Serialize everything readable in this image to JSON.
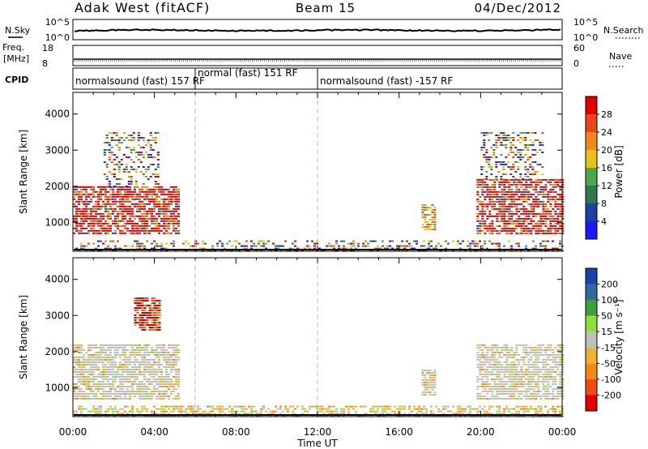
{
  "header": {
    "title": "Adak West (fitACF)",
    "beam": "Beam 15",
    "date": "04/Dec/2012"
  },
  "noise_panel": {
    "left_label": "N.Sky",
    "right_label": "N.Search",
    "left_ticks": [
      "10^5",
      "10^0"
    ],
    "right_ticks": [
      "10^5",
      "10^0"
    ]
  },
  "freq_panel": {
    "left_label_line1": "Freq.",
    "left_label_line2": "[MHz]",
    "right_label": "Nave",
    "left_ticks": [
      "18",
      "8"
    ],
    "right_ticks": [
      "60",
      "0"
    ]
  },
  "cpid": {
    "label": "CPID",
    "segments": [
      {
        "text": "normalsound (fast) 157 RF",
        "start_hour": 0,
        "end_hour": 6
      },
      {
        "text": "normal (fast) 151 RF",
        "start_hour": 6,
        "end_hour": 12
      },
      {
        "text": "normalsound (fast) -157 RF",
        "start_hour": 12,
        "end_hour": 24
      }
    ]
  },
  "x_axis": {
    "label": "Time UT",
    "ticks": [
      "00:00",
      "04:00",
      "08:00",
      "12:00",
      "16:00",
      "20:00",
      "00:00"
    ]
  },
  "colors": {
    "power_scale": [
      "#1a1aff",
      "#1d3fa8",
      "#2e7a4e",
      "#4fa64b",
      "#e8c21a",
      "#f08a16",
      "#e8461a",
      "#e00000"
    ],
    "velocity_scale": [
      "#e00000",
      "#f04a16",
      "#f08a16",
      "#f0b030",
      "#bebebe",
      "#8ede3c",
      "#3aa03a",
      "#2e6aa0",
      "#1d3fa8"
    ],
    "ground_scatter": "#bebebe"
  },
  "chart_data": [
    {
      "type": "heatmap",
      "name": "power",
      "ylabel": "Slant Range [km]",
      "yticks": [
        "1000",
        "2000",
        "3000",
        "4000"
      ],
      "ylim": [
        200,
        4600
      ],
      "xlim": [
        0,
        24
      ],
      "colorbar": {
        "label": "Power [dB]",
        "ticks": [
          "4",
          "8",
          "12",
          "16",
          "20",
          "24",
          "28"
        ]
      },
      "scatter_regions": [
        {
          "t0": 0.0,
          "t1": 5.2,
          "r0": 700,
          "r1": 2000,
          "level": "high"
        },
        {
          "t0": 1.5,
          "t1": 4.2,
          "r0": 2000,
          "r1": 3500,
          "level": "mixed"
        },
        {
          "t0": 17.1,
          "t1": 17.7,
          "r0": 800,
          "r1": 1500,
          "level": "medium"
        },
        {
          "t0": 19.8,
          "t1": 24.0,
          "r0": 700,
          "r1": 2200,
          "level": "high"
        },
        {
          "t0": 20.0,
          "t1": 23.0,
          "r0": 2200,
          "r1": 3500,
          "level": "mixed"
        },
        {
          "t0": 0.0,
          "t1": 24.0,
          "r0": 200,
          "r1": 500,
          "level": "mixed"
        }
      ]
    },
    {
      "type": "heatmap",
      "name": "velocity",
      "ylabel": "Slant Range [km]",
      "yticks": [
        "1000",
        "2000",
        "3000",
        "4000"
      ],
      "ylim": [
        200,
        4600
      ],
      "xlim": [
        0,
        24
      ],
      "colorbar": {
        "label": "Velocity [m s⁻¹]",
        "ticks": [
          "200",
          "100",
          "50",
          "15",
          "-15",
          "-50",
          "-100",
          "-200"
        ]
      },
      "scatter_regions": [
        {
          "t0": 0.0,
          "t1": 5.2,
          "r0": 700,
          "r1": 2200,
          "level": "ground"
        },
        {
          "t0": 3.0,
          "t1": 4.2,
          "r0": 2600,
          "r1": 3500,
          "level": "negative"
        },
        {
          "t0": 17.1,
          "t1": 17.7,
          "r0": 800,
          "r1": 1500,
          "level": "ground"
        },
        {
          "t0": 19.8,
          "t1": 24.0,
          "r0": 700,
          "r1": 2200,
          "level": "ground"
        },
        {
          "t0": 0.0,
          "t1": 24.0,
          "r0": 200,
          "r1": 500,
          "level": "low"
        }
      ]
    }
  ]
}
